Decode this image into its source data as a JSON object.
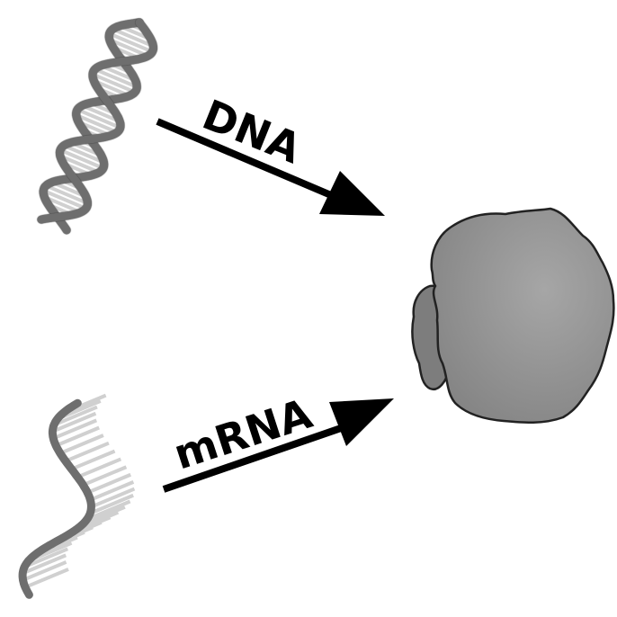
{
  "labels": {
    "dna_arrow": "DNA",
    "mrna_arrow": "mRNA"
  },
  "colors": {
    "strand": "#6e6e6e",
    "strand_edge": "#2a2a2a",
    "rung": "#d0d0d0",
    "protein_main": "#8c8c8c",
    "protein_light": "#a8a8a8",
    "protein_back": "#7a7a7a",
    "arrow": "#000000"
  },
  "icons": {
    "dna": "double-helix-icon",
    "mrna": "single-strand-icon",
    "target": "protein-blob"
  }
}
